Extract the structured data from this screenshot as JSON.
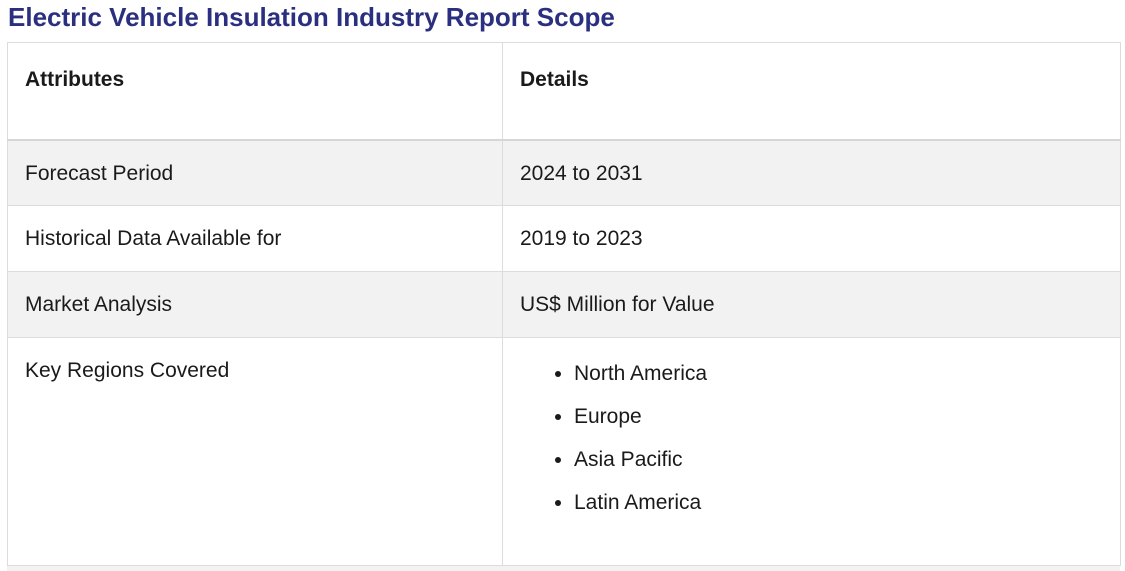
{
  "title": "Electric Vehicle Insulation Industry Report Scope",
  "table": {
    "headers": [
      "Attributes",
      "Details"
    ],
    "rows": [
      {
        "attribute": "Forecast Period",
        "detail": "2024 to 2031"
      },
      {
        "attribute": "Historical Data Available for",
        "detail": "2019 to 2023"
      },
      {
        "attribute": "Market Analysis",
        "detail": "US$ Million for Value"
      },
      {
        "attribute": "Key Regions Covered",
        "regions": [
          "North America",
          "Europe",
          "Asia Pacific",
          "Latin America"
        ]
      }
    ]
  }
}
